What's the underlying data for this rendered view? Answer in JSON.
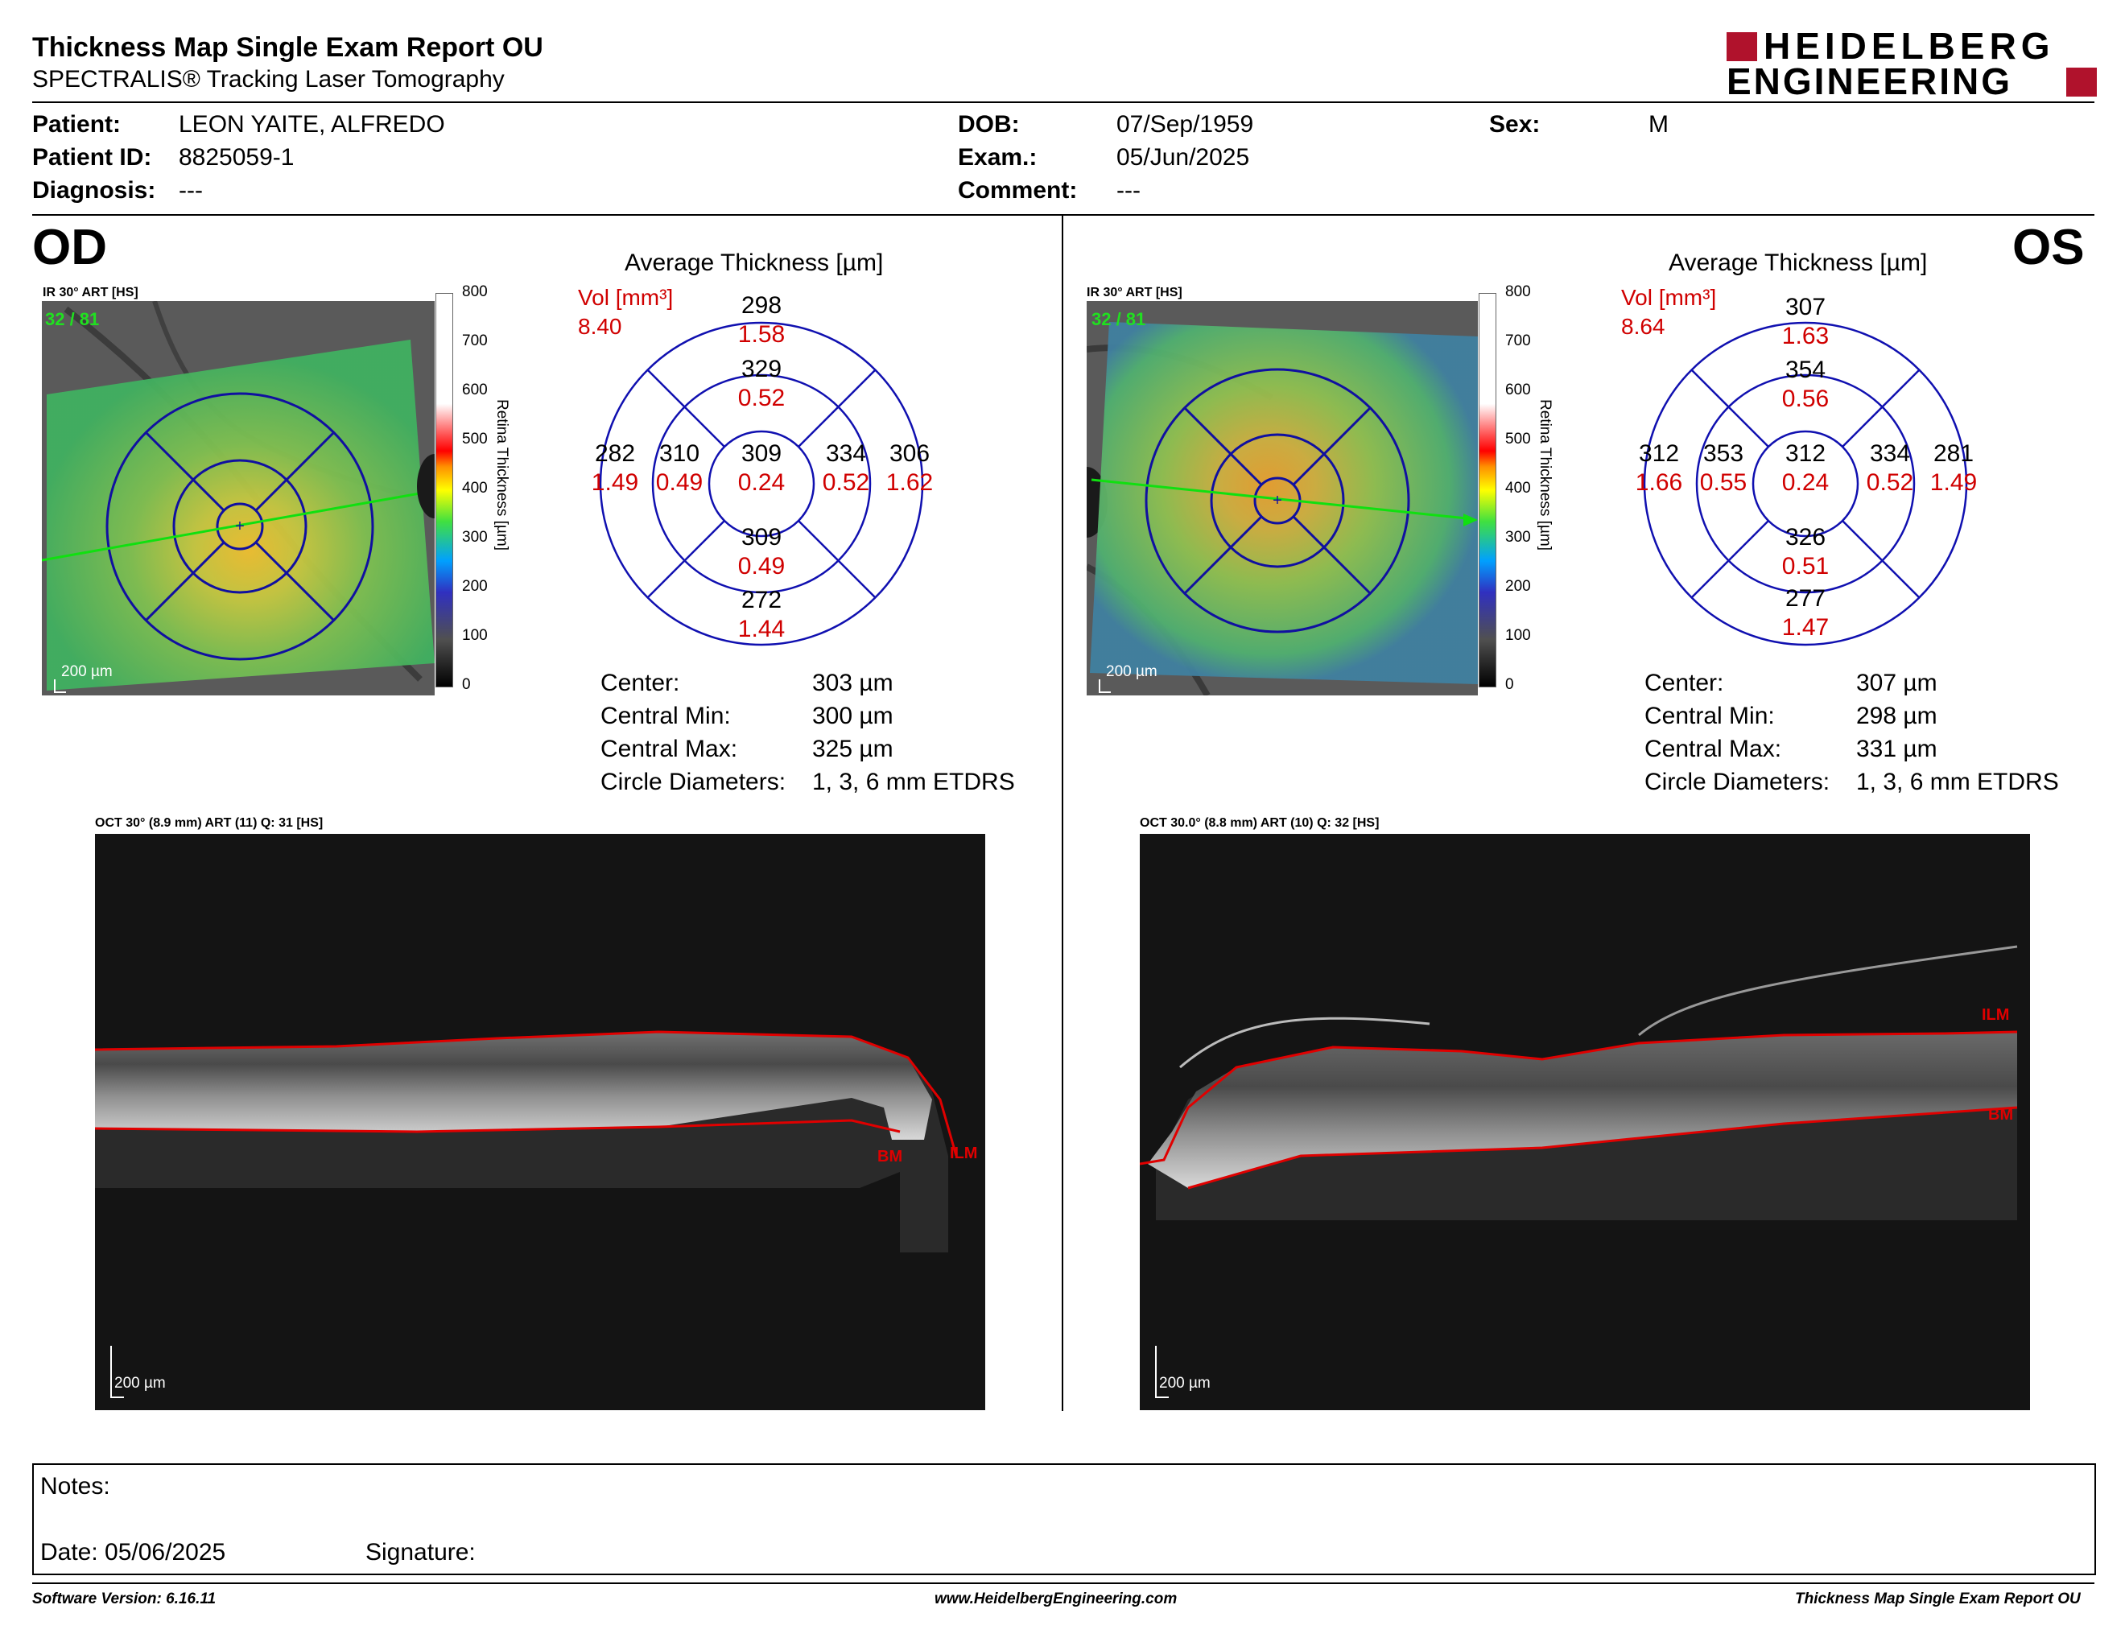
{
  "header": {
    "title": "Thickness Map Single Exam Report OU",
    "subtitle": "SPECTRALIS® Tracking Laser Tomography",
    "logo_line1": "HEIDELBERG",
    "logo_line2": "ENGINEERING"
  },
  "patient": {
    "patient_label": "Patient:",
    "patient_value": "LEON YAITE, ALFREDO",
    "id_label": "Patient ID:",
    "id_value": "8825059-1",
    "diagnosis_label": "Diagnosis:",
    "diagnosis_value": "---",
    "dob_label": "DOB:",
    "dob_value": "07/Sep/1959",
    "exam_label": "Exam.:",
    "exam_value": "05/Jun/2025",
    "comment_label": "Comment:",
    "comment_value": "---",
    "sex_label": "Sex:",
    "sex_value": "M"
  },
  "colorbar": {
    "ticks": [
      "800",
      "700",
      "600",
      "500",
      "400",
      "300",
      "200",
      "100",
      "0"
    ],
    "title": "Retina Thickness [µm]"
  },
  "od": {
    "eye": "OD",
    "ir_caption": "IR 30° ART [HS]",
    "art_count": "32 / 81",
    "scale": "200 µm",
    "avg_title": "Average Thickness [µm]",
    "vol_label": "Vol [mm³]",
    "vol_value": "8.40",
    "sectors": {
      "outer_sup": [
        "298",
        "1.58"
      ],
      "inner_sup": [
        "329",
        "0.52"
      ],
      "outer_temp": [
        "282",
        "1.49"
      ],
      "inner_temp": [
        "310",
        "0.49"
      ],
      "center": [
        "309",
        "0.24"
      ],
      "inner_nasal": [
        "334",
        "0.52"
      ],
      "outer_nasal": [
        "306",
        "1.62"
      ],
      "inner_inf": [
        "309",
        "0.49"
      ],
      "outer_inf": [
        "272",
        "1.44"
      ]
    },
    "stats": [
      [
        "Center:",
        "303 µm"
      ],
      [
        "Central Min:",
        "300 µm"
      ],
      [
        "Central Max:",
        "325 µm"
      ],
      [
        "Circle Diameters:",
        "1, 3, 6 mm ETDRS"
      ]
    ],
    "oct_caption": "OCT 30° (8.9 mm) ART (11) Q: 31 [HS]",
    "oct_scale": "200 µm",
    "labels": {
      "bm": "BM",
      "ilm": "ILM"
    }
  },
  "os": {
    "eye": "OS",
    "ir_caption": "IR 30° ART [HS]",
    "art_count": "32 / 81",
    "scale": "200 µm",
    "avg_title": "Average Thickness [µm]",
    "vol_label": "Vol [mm³]",
    "vol_value": "8.64",
    "sectors": {
      "outer_sup": [
        "307",
        "1.63"
      ],
      "inner_sup": [
        "354",
        "0.56"
      ],
      "outer_temp": [
        "312",
        "1.66"
      ],
      "inner_temp": [
        "353",
        "0.55"
      ],
      "center": [
        "312",
        "0.24"
      ],
      "inner_nasal": [
        "334",
        "0.52"
      ],
      "outer_nasal": [
        "281",
        "1.49"
      ],
      "inner_inf": [
        "326",
        "0.51"
      ],
      "outer_inf": [
        "277",
        "1.47"
      ]
    },
    "stats": [
      [
        "Center:",
        "307 µm"
      ],
      [
        "Central Min:",
        "298 µm"
      ],
      [
        "Central Max:",
        "331 µm"
      ],
      [
        "Circle Diameters:",
        "1, 3, 6 mm ETDRS"
      ]
    ],
    "oct_caption": "OCT 30.0° (8.8 mm) ART (10) Q: 32 [HS]",
    "oct_scale": "200 µm",
    "labels": {
      "bm": "BM",
      "ilm": "ILM"
    }
  },
  "notes": {
    "notes_label": "Notes:",
    "date_label": "Date: 05/06/2025",
    "signature_label": "Signature:"
  },
  "footer": {
    "software": "Software Version: 6.16.11",
    "website": "www.HeidelbergEngineering.com",
    "report": "Thickness Map Single Exam Report OU"
  }
}
